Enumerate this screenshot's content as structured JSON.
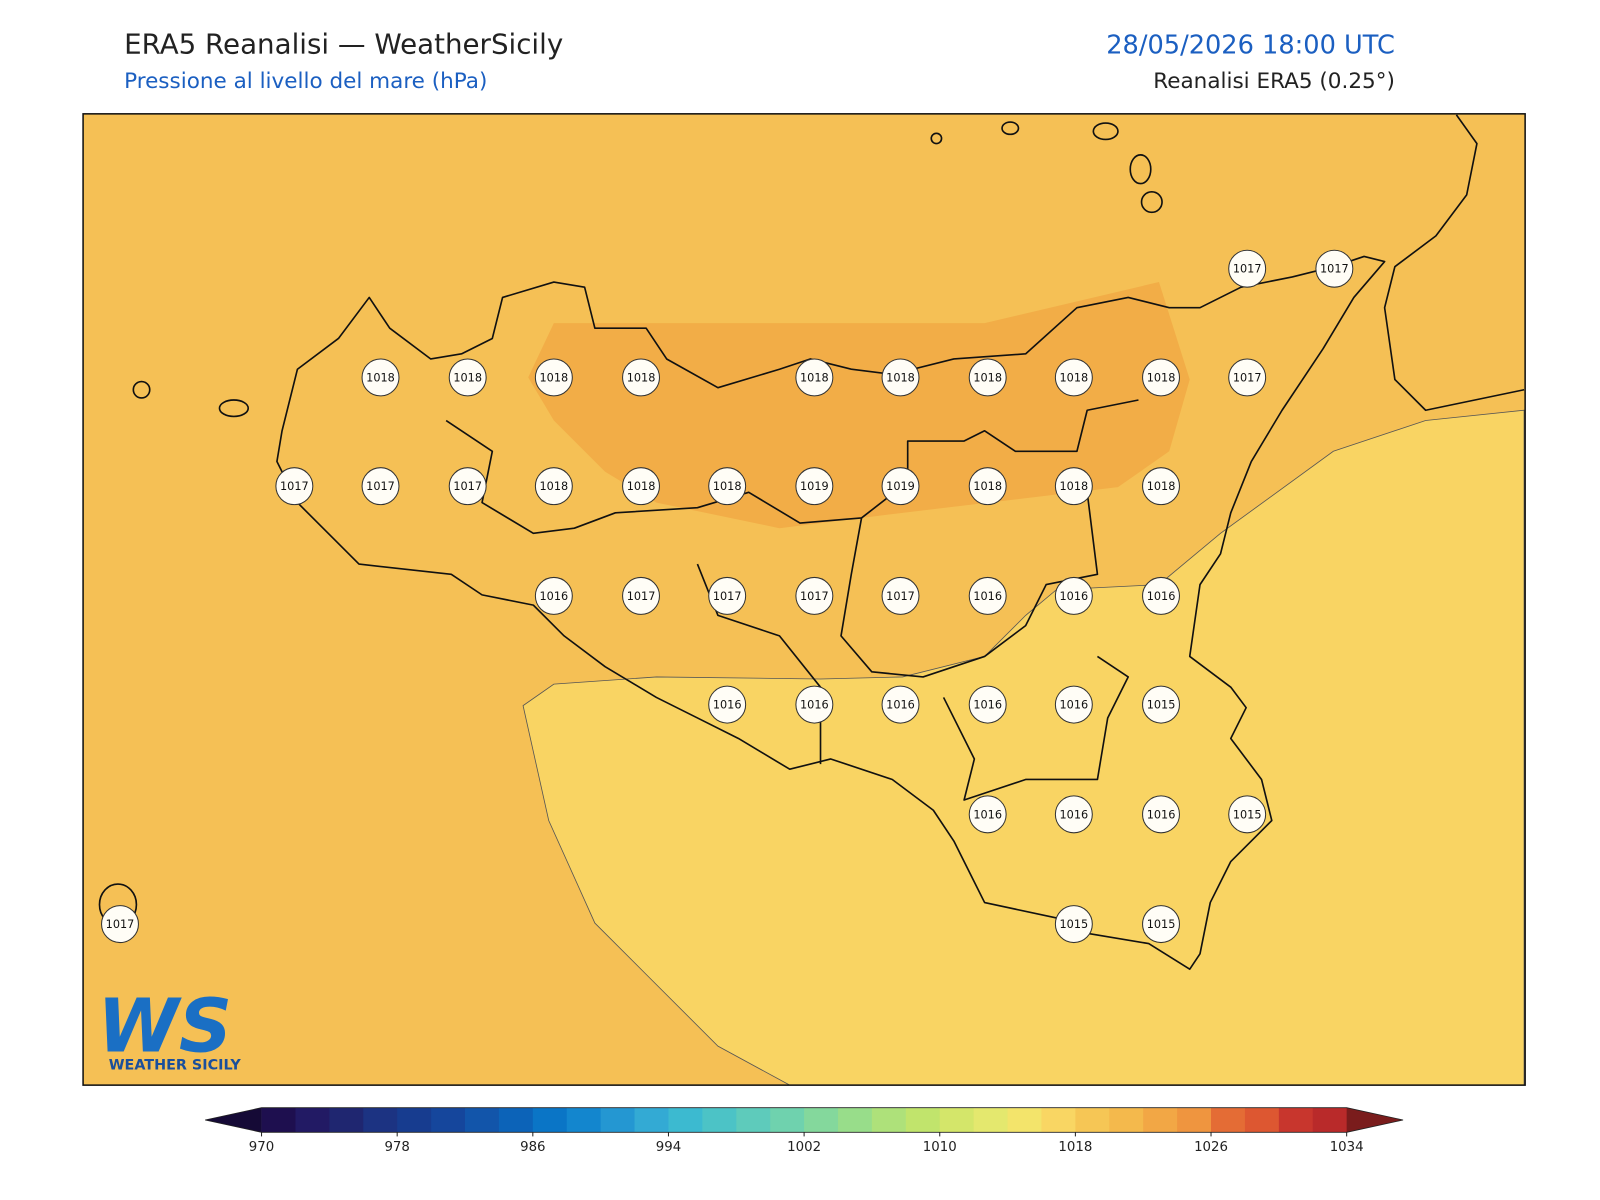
{
  "header": {
    "title": "ERA5 Reanalisi — WeatherSicily",
    "subtitle": "Pressione al livello del mare (hPa)",
    "valid_time": "28/05/2026 18:00 UTC",
    "source": "Reanalisi ERA5 (0.25°)"
  },
  "stations": [
    {
      "value": 1017
    },
    {
      "value": 1017
    },
    {
      "value": 1018
    },
    {
      "value": 1018
    },
    {
      "value": 1018
    },
    {
      "value": 1018
    },
    {
      "value": 1018
    },
    {
      "value": 1018
    },
    {
      "value": 1018
    },
    {
      "value": 1018
    },
    {
      "value": 1018
    },
    {
      "value": 1017
    },
    {
      "value": 1017
    },
    {
      "value": 1017
    },
    {
      "value": 1017
    },
    {
      "value": 1018
    },
    {
      "value": 1018
    },
    {
      "value": 1018
    },
    {
      "value": 1019
    },
    {
      "value": 1019
    },
    {
      "value": 1018
    },
    {
      "value": 1018
    },
    {
      "value": 1018
    },
    {
      "value": 1016
    },
    {
      "value": 1017
    },
    {
      "value": 1017
    },
    {
      "value": 1017
    },
    {
      "value": 1017
    },
    {
      "value": 1016
    },
    {
      "value": 1016
    },
    {
      "value": 1016
    },
    {
      "value": 1016
    },
    {
      "value": 1016
    },
    {
      "value": 1016
    },
    {
      "value": 1016
    },
    {
      "value": 1016
    },
    {
      "value": 1015
    },
    {
      "value": 1016
    },
    {
      "value": 1016
    },
    {
      "value": 1016
    },
    {
      "value": 1015
    },
    {
      "value": 1017
    },
    {
      "value": 1015
    },
    {
      "value": 1015
    }
  ],
  "colorbar": {
    "ticks": [
      970,
      978,
      986,
      994,
      1002,
      1010,
      1018,
      1026,
      1034
    ],
    "colors": [
      "#1e0f4f",
      "#221a64",
      "#1f2670",
      "#1c3382",
      "#173c8f",
      "#15469c",
      "#1255aa",
      "#0c63b8",
      "#0a75c6",
      "#1386ce",
      "#2497d2",
      "#33aad4",
      "#3cbad0",
      "#4cc3c6",
      "#5ecbbb",
      "#6fd2ae",
      "#84d89c",
      "#98dd8a",
      "#aee17a",
      "#c1e46c",
      "#d4e66a",
      "#e4e86e",
      "#f3e46b",
      "#f9d663",
      "#f6c655",
      "#f4b94c",
      "#f2a745",
      "#ef953f",
      "#e46c35",
      "#dd5731",
      "#c8362d",
      "#b92a2a"
    ],
    "under_color": "#150a36",
    "over_color": "#7a1c1c"
  },
  "logo": {
    "initials": "WS",
    "text": "WEATHER SICILY"
  }
}
